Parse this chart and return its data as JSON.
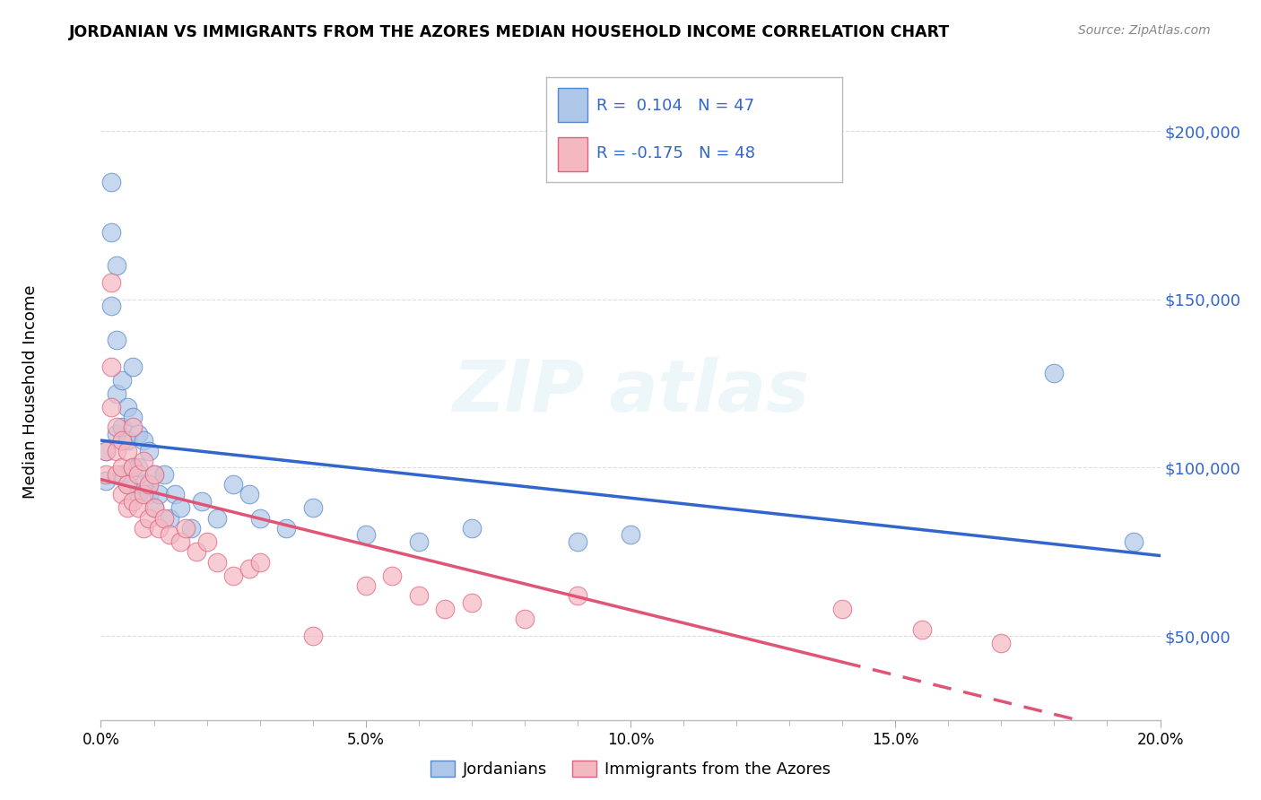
{
  "title": "JORDANIAN VS IMMIGRANTS FROM THE AZORES MEDIAN HOUSEHOLD INCOME CORRELATION CHART",
  "source": "Source: ZipAtlas.com",
  "ylabel": "Median Household Income",
  "y_ticks": [
    50000,
    100000,
    150000,
    200000
  ],
  "y_tick_labels": [
    "$50,000",
    "$100,000",
    "$150,000",
    "$200,000"
  ],
  "xlim": [
    0.0,
    0.2
  ],
  "ylim": [
    25000,
    220000
  ],
  "legend_label_blue": "Jordanians",
  "legend_label_pink": "Immigrants from the Azores",
  "blue_color": "#aec6e8",
  "pink_color": "#f4b8c1",
  "blue_edge_color": "#5588cc",
  "pink_edge_color": "#e06080",
  "blue_line_color": "#3366cc",
  "pink_line_color": "#e05575",
  "blue_r": "0.104",
  "blue_n": "47",
  "pink_r": "-0.175",
  "pink_n": "48",
  "blue_scatter_x": [
    0.001,
    0.001,
    0.002,
    0.002,
    0.002,
    0.003,
    0.003,
    0.003,
    0.003,
    0.004,
    0.004,
    0.004,
    0.005,
    0.005,
    0.005,
    0.006,
    0.006,
    0.006,
    0.007,
    0.007,
    0.007,
    0.008,
    0.008,
    0.009,
    0.009,
    0.01,
    0.01,
    0.011,
    0.012,
    0.013,
    0.014,
    0.015,
    0.017,
    0.019,
    0.022,
    0.025,
    0.028,
    0.03,
    0.035,
    0.04,
    0.05,
    0.06,
    0.07,
    0.09,
    0.1,
    0.18,
    0.195
  ],
  "blue_scatter_y": [
    96000,
    105000,
    185000,
    170000,
    148000,
    160000,
    138000,
    122000,
    110000,
    126000,
    112000,
    98000,
    118000,
    108000,
    95000,
    130000,
    115000,
    100000,
    110000,
    100000,
    92000,
    108000,
    95000,
    105000,
    92000,
    98000,
    88000,
    92000,
    98000,
    85000,
    92000,
    88000,
    82000,
    90000,
    85000,
    95000,
    92000,
    85000,
    82000,
    88000,
    80000,
    78000,
    82000,
    78000,
    80000,
    128000,
    78000
  ],
  "pink_scatter_x": [
    0.001,
    0.001,
    0.002,
    0.002,
    0.002,
    0.003,
    0.003,
    0.003,
    0.004,
    0.004,
    0.004,
    0.005,
    0.005,
    0.005,
    0.006,
    0.006,
    0.006,
    0.007,
    0.007,
    0.008,
    0.008,
    0.008,
    0.009,
    0.009,
    0.01,
    0.01,
    0.011,
    0.012,
    0.013,
    0.015,
    0.016,
    0.018,
    0.02,
    0.022,
    0.025,
    0.028,
    0.03,
    0.04,
    0.05,
    0.055,
    0.06,
    0.065,
    0.07,
    0.08,
    0.09,
    0.14,
    0.155,
    0.17
  ],
  "pink_scatter_y": [
    105000,
    98000,
    155000,
    130000,
    118000,
    112000,
    105000,
    98000,
    108000,
    100000,
    92000,
    105000,
    95000,
    88000,
    112000,
    100000,
    90000,
    98000,
    88000,
    102000,
    92000,
    82000,
    95000,
    85000,
    98000,
    88000,
    82000,
    85000,
    80000,
    78000,
    82000,
    75000,
    78000,
    72000,
    68000,
    70000,
    72000,
    50000,
    65000,
    68000,
    62000,
    58000,
    60000,
    55000,
    62000,
    58000,
    52000,
    48000
  ]
}
